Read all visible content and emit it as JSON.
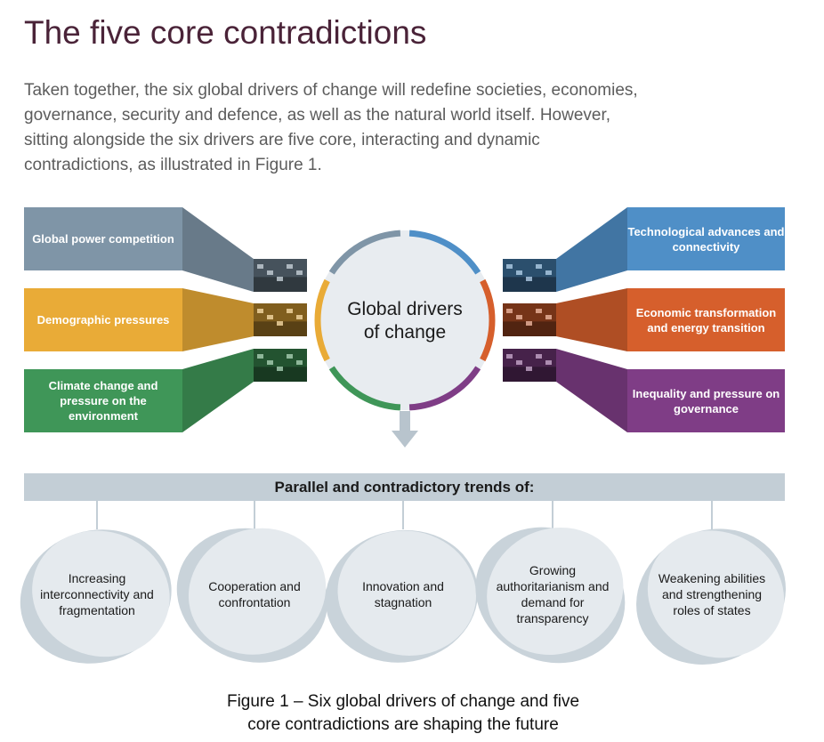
{
  "title": "The five core contradictions",
  "intro_lines": [
    "Taken together, the six global drivers of change will redefine societies, economies,",
    "governance, security and defence, as well as the natural world itself. However,",
    "sitting alongside the six drivers are five core, interacting and dynamic",
    "contradictions, as illustrated in Figure 1."
  ],
  "hub": {
    "label_line1": "Global drivers",
    "label_line2": "of change"
  },
  "drivers_left": [
    {
      "label": "Global power competition",
      "color": "#7f95a7",
      "image": "naval-fleet-photo"
    },
    {
      "label": "Demographic pressures",
      "color": "#e9ab37",
      "image": "elderly-people-photo"
    },
    {
      "label": "Climate change and pressure on the environment",
      "color": "#3f9658",
      "image": "flooded-crops-photo"
    }
  ],
  "drivers_right": [
    {
      "label": "Technological advances and connectivity",
      "color": "#4f8fc7",
      "image": "circuit-board-photo"
    },
    {
      "label": "Economic transformation and energy transition",
      "color": "#d65f2c",
      "image": "solar-panels-photo"
    },
    {
      "label": "Inequality and pressure on governance",
      "color": "#7f3d86",
      "image": "slum-street-photo"
    }
  ],
  "ring_colors": [
    "#4f8fc7",
    "#d65f2c",
    "#7f3d86",
    "#3f9658",
    "#e9ab37",
    "#7f95a7"
  ],
  "arrow_color": "#b8c4cd",
  "trends_bar": {
    "label": "Parallel and contradictory trends of:",
    "color": "#c3ced6"
  },
  "trends": [
    {
      "label": "Increasing interconnectivity and fragmentation"
    },
    {
      "label": "Cooperation and confrontation"
    },
    {
      "label": "Innovation and stagnation"
    },
    {
      "label": "Growing authoritarianism and demand for transparency"
    },
    {
      "label": "Weakening abilities and strengthening roles of states"
    }
  ],
  "caption_lines": [
    "Figure 1 – Six global drivers of change and five",
    "core contradictions are shaping the future"
  ]
}
